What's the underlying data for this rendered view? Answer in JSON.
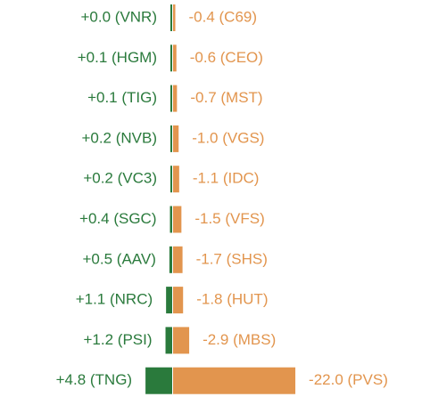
{
  "chart_data": {
    "type": "diverging_bar",
    "series": [
      {
        "color": "#2a7a3c",
        "values": [
          0.0,
          0.1,
          0.1,
          0.2,
          0.2,
          0.4,
          0.5,
          1.1,
          1.2,
          4.8
        ],
        "value_labels": [
          "+0.0 (VNR)",
          "+0.1 (HGM)",
          "+0.1 (TIG)",
          "+0.2 (NVB)",
          "+0.2 (VC3)",
          "+0.4 (SGC)",
          "+0.5 (AAV)",
          "+1.1 (NRC)",
          "+1.2 (PSI)",
          "+4.8 (TNG)"
        ]
      },
      {
        "color": "#e2954e",
        "values": [
          -0.4,
          -0.6,
          -0.7,
          -1.0,
          -1.1,
          -1.5,
          -1.7,
          -1.8,
          -2.9,
          -22.0
        ],
        "value_labels": [
          "-0.4 (C69)",
          "-0.6 (CEO)",
          "-0.7 (MST)",
          "-1.0 (VGS)",
          "-1.1 (IDC)",
          "-1.5 (VFS)",
          "-1.7 (SHS)",
          "-1.8 (HUT)",
          "-2.9 (MBS)",
          "-22.0 (PVS)"
        ]
      }
    ]
  }
}
